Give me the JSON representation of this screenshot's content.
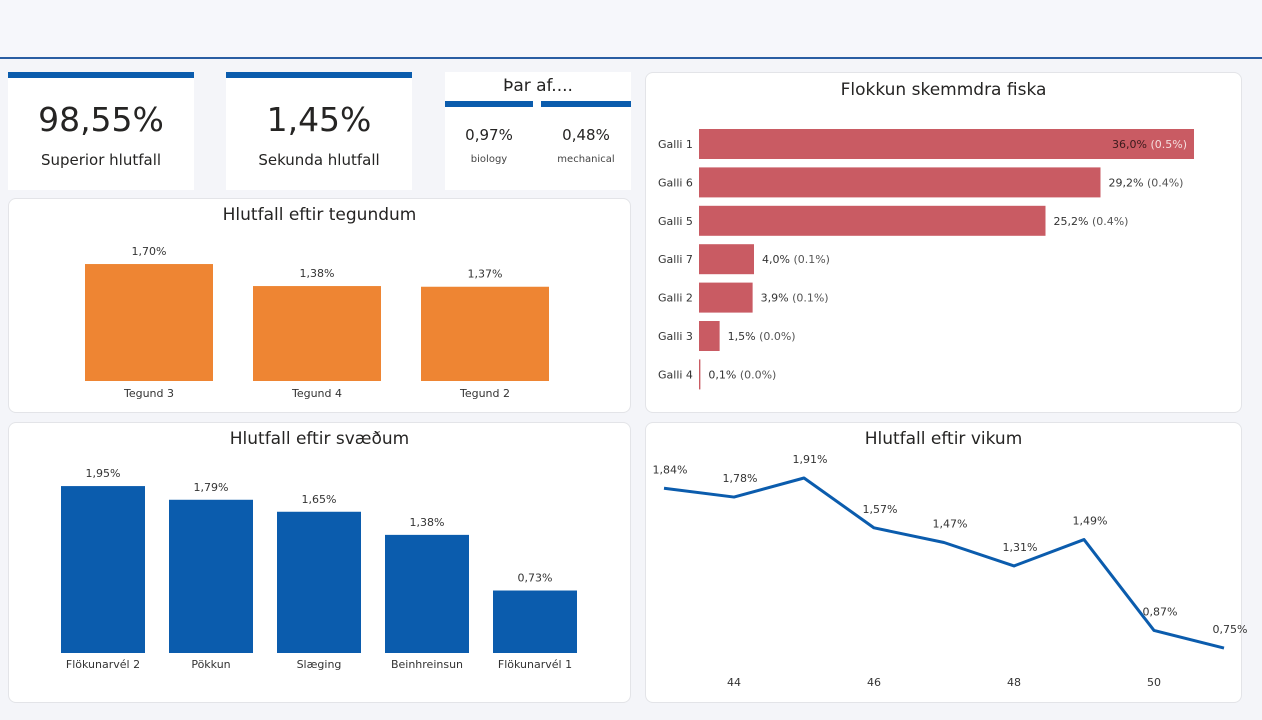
{
  "kpis": [
    {
      "value": "98,55%",
      "label": "Superior hlutfall"
    },
    {
      "value": "1,45%",
      "label": "Sekunda hlutfall"
    }
  ],
  "breakdown": {
    "title": "Þar af....",
    "items": [
      {
        "value": "0,97%",
        "label": "biology"
      },
      {
        "value": "0,48%",
        "label": "mechanical"
      }
    ]
  },
  "colors": {
    "accent": "#0b5cad",
    "orange": "#ee8533",
    "red": "#c95b63",
    "line": "#0b5cad"
  },
  "chart_data": [
    {
      "type": "bar",
      "title": "Hlutfall eftir tegundum",
      "categories": [
        "Tegund 3",
        "Tegund 4",
        "Tegund 2"
      ],
      "values": [
        1.7,
        1.38,
        1.37
      ],
      "labels": [
        "1,70%",
        "1,38%",
        "1,37%"
      ],
      "color": "#ee8533"
    },
    {
      "type": "bar",
      "orientation": "horizontal",
      "title": "Flokkun skemmdra fiska",
      "categories": [
        "Galli 1",
        "Galli 6",
        "Galli 5",
        "Galli 7",
        "Galli 2",
        "Galli 3",
        "Galli 4"
      ],
      "values": [
        36.0,
        29.2,
        25.2,
        4.0,
        3.9,
        1.5,
        0.1
      ],
      "secondary": [
        0.5,
        0.4,
        0.4,
        0.1,
        0.1,
        0.0,
        0.0
      ],
      "labels": [
        "36,0%",
        "29,2%",
        "25,2%",
        "4,0%",
        "3,9%",
        "1,5%",
        "0,1%"
      ],
      "secondary_labels": [
        "(0.5%)",
        "(0.4%)",
        "(0.4%)",
        "(0.1%)",
        "(0.1%)",
        "(0.0%)",
        "(0.0%)"
      ],
      "color": "#c95b63"
    },
    {
      "type": "bar",
      "title": "Hlutfall eftir svæðum",
      "categories": [
        "Flökunarvél 2",
        "Pökkun",
        "Slæging",
        "Beinhreinsun",
        "Flökunarvél 1"
      ],
      "values": [
        1.95,
        1.79,
        1.65,
        1.38,
        0.73
      ],
      "labels": [
        "1,95%",
        "1,79%",
        "1,65%",
        "1,38%",
        "0,73%"
      ],
      "color": "#0b5cad"
    },
    {
      "type": "line",
      "title": "Hlutfall eftir vikum",
      "x": [
        43,
        44,
        45,
        46,
        47,
        48,
        49,
        50,
        51
      ],
      "values": [
        1.84,
        1.78,
        1.91,
        1.57,
        1.47,
        1.31,
        1.49,
        0.87,
        0.75
      ],
      "labels": [
        "1,84%",
        "1,78%",
        "1,91%",
        "1,57%",
        "1,47%",
        "1,31%",
        "1,49%",
        "0,87%",
        "0,75%"
      ],
      "xticks": [
        "44",
        "46",
        "48",
        "50"
      ],
      "color": "#0b5cad"
    }
  ]
}
